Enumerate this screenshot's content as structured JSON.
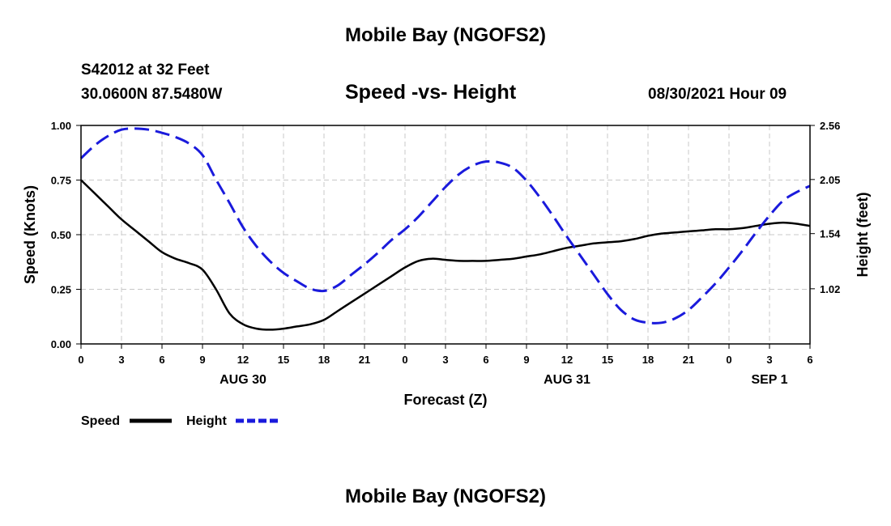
{
  "header": {
    "title_top": "Mobile Bay (NGOFS2)",
    "station": "S42012 at 32 Feet",
    "coords": "30.0600N  87.5480W",
    "subtitle": "Speed -vs- Height",
    "datetime": "08/30/2021 Hour 09",
    "title_bottom": "Mobile Bay (NGOFS2)"
  },
  "chart_data": {
    "type": "line",
    "xlabel": "Forecast (Z)",
    "ylabel_left": "Speed (Knots)",
    "ylabel_right": "Height (feet)",
    "x_unit": "hours from Aug 30 00Z",
    "xlim": [
      0,
      54
    ],
    "ylim_left": [
      0,
      1
    ],
    "ylim_right": [
      0.5,
      2.56
    ],
    "x_ticks": [
      0,
      3,
      6,
      9,
      12,
      15,
      18,
      21,
      24,
      27,
      30,
      33,
      36,
      39,
      42,
      45,
      48,
      51,
      54
    ],
    "x_tick_labels": [
      "0",
      "3",
      "6",
      "9",
      "12",
      "15",
      "18",
      "21",
      "0",
      "3",
      "6",
      "9",
      "12",
      "15",
      "18",
      "21",
      "0",
      "3",
      "6"
    ],
    "y_left_ticks": [
      0,
      0.25,
      0.5,
      0.75,
      1.0
    ],
    "y_left_tick_labels": [
      "0.00",
      "0.25",
      "0.50",
      "0.75",
      "1.00"
    ],
    "y_right_ticks": [
      1.02,
      1.54,
      2.05,
      2.56
    ],
    "y_right_tick_labels": [
      "1.02",
      "1.54",
      "2.05",
      "2.56"
    ],
    "day_labels": [
      {
        "x": 12,
        "label": "AUG 30"
      },
      {
        "x": 36,
        "label": "AUG 31"
      },
      {
        "x": 51,
        "label": "SEP 1"
      }
    ],
    "grid": true,
    "legend_position": "bottom-left",
    "series": [
      {
        "name": "Speed",
        "axis": "left",
        "color": "#000000",
        "style": "solid",
        "x": [
          0,
          1,
          2,
          3,
          4,
          5,
          6,
          7,
          8,
          9,
          10,
          11,
          12,
          13,
          14,
          15,
          16,
          17,
          18,
          19,
          20,
          21,
          22,
          23,
          24,
          25,
          26,
          27,
          28,
          29,
          30,
          31,
          32,
          33,
          34,
          35,
          36,
          37,
          38,
          39,
          40,
          41,
          42,
          43,
          44,
          45,
          46,
          47,
          48,
          49,
          50,
          51,
          52,
          53,
          54
        ],
        "y": [
          0.75,
          0.69,
          0.63,
          0.57,
          0.52,
          0.47,
          0.42,
          0.39,
          0.37,
          0.34,
          0.25,
          0.14,
          0.09,
          0.07,
          0.065,
          0.07,
          0.08,
          0.09,
          0.11,
          0.15,
          0.19,
          0.23,
          0.27,
          0.31,
          0.35,
          0.38,
          0.39,
          0.385,
          0.38,
          0.38,
          0.38,
          0.385,
          0.39,
          0.4,
          0.41,
          0.425,
          0.44,
          0.45,
          0.46,
          0.465,
          0.47,
          0.48,
          0.495,
          0.505,
          0.51,
          0.515,
          0.52,
          0.525,
          0.525,
          0.53,
          0.54,
          0.55,
          0.555,
          0.55,
          0.54
        ]
      },
      {
        "name": "Height",
        "axis": "right",
        "color": "#1a1adc",
        "style": "dashed",
        "x": [
          0,
          1,
          2,
          3,
          4,
          5,
          6,
          7,
          8,
          9,
          10,
          11,
          12,
          13,
          14,
          15,
          16,
          17,
          18,
          19,
          20,
          21,
          22,
          23,
          24,
          25,
          26,
          27,
          28,
          29,
          30,
          31,
          32,
          33,
          34,
          35,
          36,
          37,
          38,
          39,
          40,
          41,
          42,
          43,
          44,
          45,
          46,
          47,
          48,
          49,
          50,
          51,
          52,
          53,
          54
        ],
        "y": [
          2.25,
          2.37,
          2.46,
          2.52,
          2.53,
          2.52,
          2.49,
          2.45,
          2.39,
          2.28,
          2.05,
          1.83,
          1.6,
          1.42,
          1.28,
          1.17,
          1.09,
          1.02,
          1.0,
          1.05,
          1.15,
          1.25,
          1.36,
          1.48,
          1.58,
          1.7,
          1.84,
          1.98,
          2.1,
          2.18,
          2.22,
          2.21,
          2.16,
          2.04,
          1.88,
          1.7,
          1.51,
          1.33,
          1.15,
          0.97,
          0.82,
          0.73,
          0.7,
          0.7,
          0.74,
          0.82,
          0.94,
          1.07,
          1.22,
          1.38,
          1.55,
          1.71,
          1.85,
          1.93,
          1.99
        ]
      }
    ]
  }
}
